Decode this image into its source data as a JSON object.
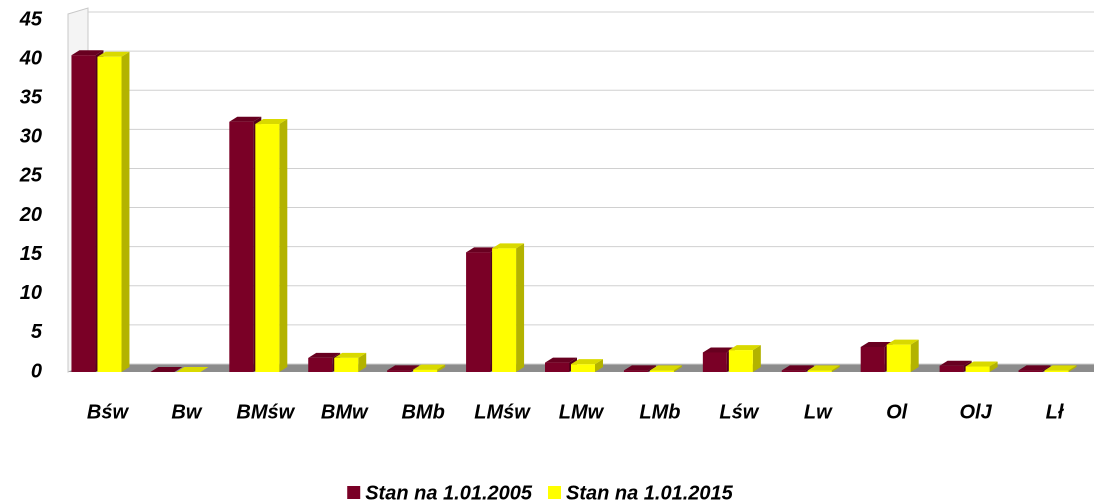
{
  "chart_data": {
    "type": "bar",
    "categories": [
      "Bśw",
      "Bw",
      "BMśw",
      "BMw",
      "BMb",
      "LMśw",
      "LMw",
      "LMb",
      "Lśw",
      "Lw",
      "Ol",
      "OlJ",
      "Lł"
    ],
    "series": [
      {
        "name": "Stan na 1.01.2005",
        "color": "#7a0026",
        "values": [
          40.5,
          0,
          32,
          1.8,
          0.2,
          15.3,
          1.2,
          0.2,
          2.5,
          0.2,
          3.2,
          0.8,
          0.2
        ]
      },
      {
        "name": "Stan na 1.01.2015",
        "color": "#ffff00",
        "values": [
          40.3,
          0,
          31.7,
          1.8,
          0.3,
          15.8,
          1.0,
          0.2,
          2.8,
          0.2,
          3.5,
          0.7,
          0.2
        ]
      }
    ],
    "ylim": [
      0,
      45
    ],
    "yticks": [
      0,
      5,
      10,
      15,
      20,
      25,
      30,
      35,
      40,
      45
    ],
    "grid": true,
    "legend": "bottom"
  }
}
